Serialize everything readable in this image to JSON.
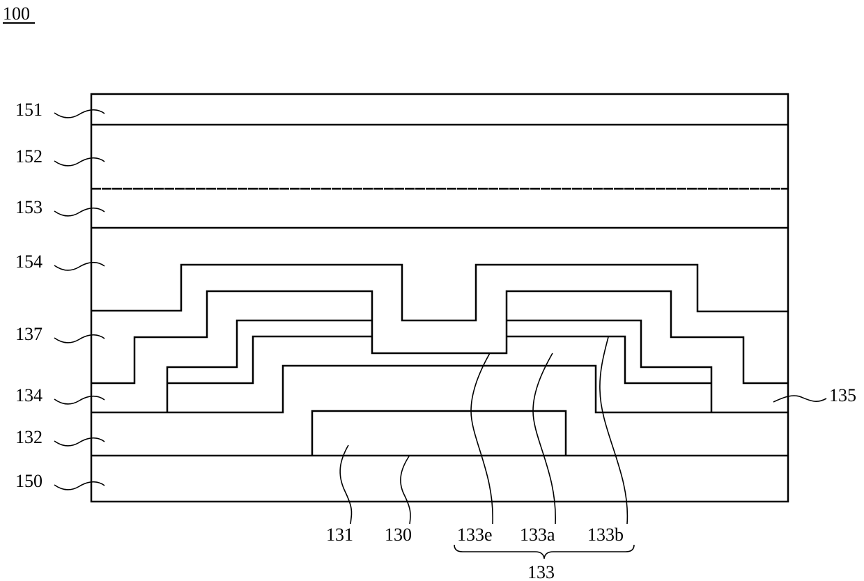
{
  "figure_ref": "100",
  "left_labels": [
    "151",
    "152",
    "153",
    "154",
    "137",
    "134",
    "132",
    "150"
  ],
  "right_label": "135",
  "bottom_labels": [
    "131",
    "130",
    "133e",
    "133a",
    "133b"
  ],
  "group_label": "133"
}
